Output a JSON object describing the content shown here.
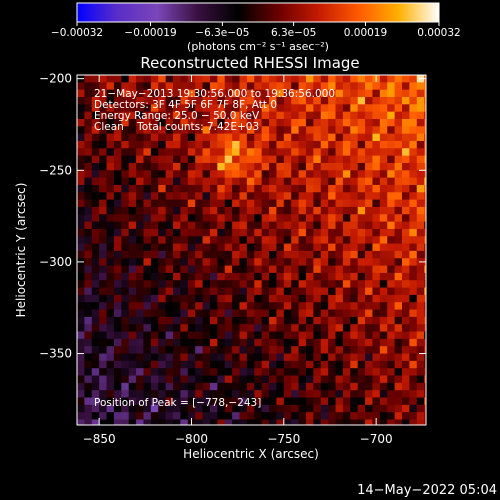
{
  "chart_data": {
    "type": "heatmap",
    "title": "Reconstructed RHESSI Image",
    "xlabel": "Heliocentric X (arcsec)",
    "ylabel": "Heliocentric Y (arcsec)",
    "xlim": [
      -862,
      -673
    ],
    "ylim": [
      -389,
      -198
    ],
    "x_ticks": [
      -850,
      -800,
      -750,
      -700
    ],
    "x_tick_labels": [
      "−850",
      "−800",
      "−750",
      "−700"
    ],
    "y_ticks": [
      -200,
      -250,
      -300,
      -350
    ],
    "y_tick_labels": [
      "−200",
      "−250",
      "−300",
      "−350"
    ],
    "colorbar": {
      "range": [
        -0.00032,
        0.00032
      ],
      "ticks": [
        -0.00032,
        -0.00019,
        -6.3e-05,
        6.3e-05,
        0.00019,
        0.00032
      ],
      "tick_labels": [
        "−0.00032",
        "−0.00019",
        "−6.3e−05",
        "6.3e−05",
        "0.00019",
        "0.00032"
      ],
      "units": "(photons cm⁻² s⁻¹ asec⁻²)",
      "colors": [
        "#0000ff",
        "#5a2dc8",
        "#7a46b8",
        "#3a1040",
        "#000000",
        "#6a0000",
        "#c41a00",
        "#ff5a00",
        "#ffb000",
        "#ffffff"
      ]
    },
    "annotations": [
      "21−May−2013 19:30:56.000 to 19:36:56.000",
      "Detectors: 3F 4F 5F 6F 7F 8F, Att 0",
      "Energy Range: 25.0 − 50.0 keV",
      "Clean    Total counts: 7.42E+03"
    ],
    "peak_label": "Position of Peak = [−778,−243]",
    "peak": [
      -778,
      -243
    ],
    "grid": false
  },
  "footer": {
    "timestamp": "14−May−2022 05:04"
  }
}
